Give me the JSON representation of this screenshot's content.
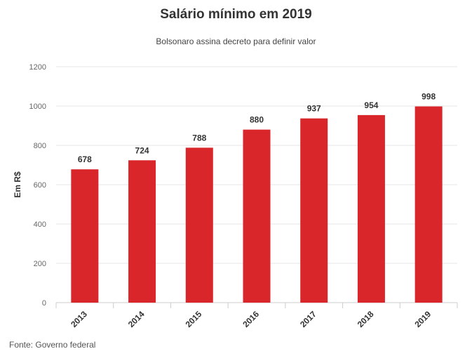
{
  "chart_data": {
    "type": "bar",
    "title": "Salário mínimo em 2019",
    "subtitle": "Bolsonaro assina decreto para definir valor",
    "ylabel": "Em R$",
    "xlabel": "",
    "categories": [
      "2013",
      "2014",
      "2015",
      "2016",
      "2017",
      "2018",
      "2019"
    ],
    "values": [
      678,
      724,
      788,
      880,
      937,
      954,
      998
    ],
    "data_labels": [
      "678",
      "724",
      "788",
      "880",
      "937",
      "954",
      "998"
    ],
    "ylim": [
      0,
      1200
    ],
    "yticks": [
      0,
      200,
      400,
      600,
      800,
      1000,
      1200
    ],
    "ytick_labels": [
      "0",
      "200",
      "400",
      "600",
      "800",
      "1000",
      "1200"
    ],
    "grid": true,
    "legend": "none",
    "bar_color": "#d9262b",
    "source": "Fonte: Governo federal"
  }
}
